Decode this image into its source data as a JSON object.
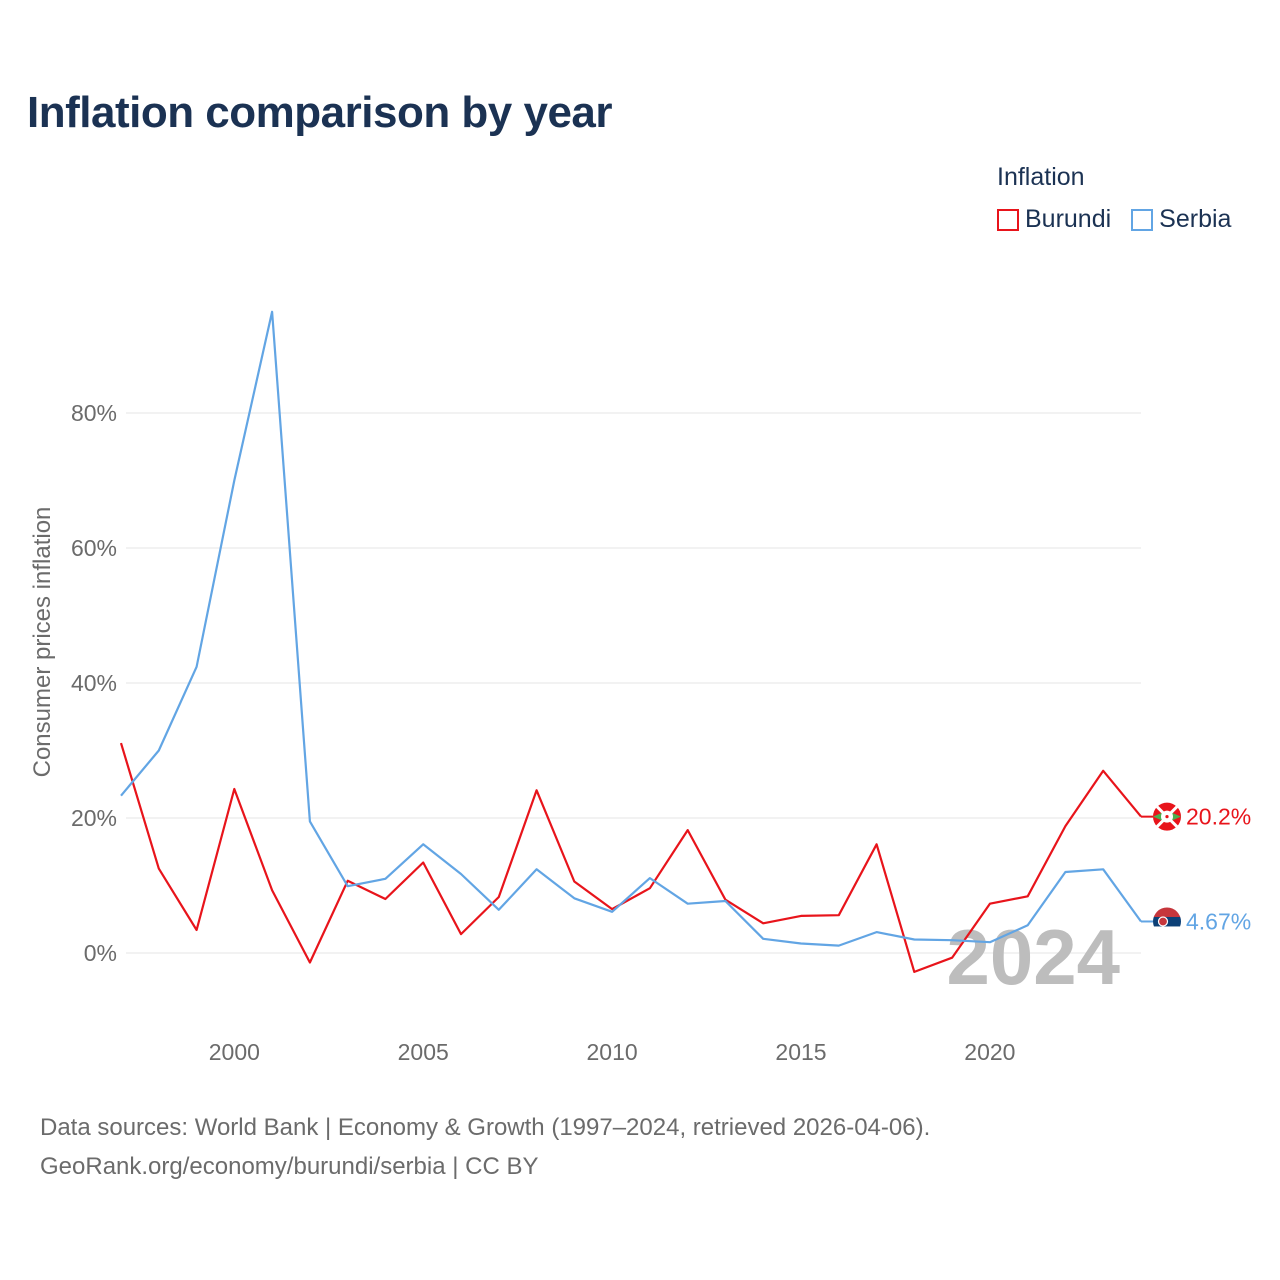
{
  "title": "Inflation comparison by year",
  "legend": {
    "title": "Inflation",
    "items": [
      {
        "label": "Burundi",
        "color": "#e8141b"
      },
      {
        "label": "Serbia",
        "color": "#62a5e4"
      }
    ]
  },
  "source": {
    "line1": "Data sources: World Bank | Economy & Growth (1997–2024, retrieved 2026-04-06).",
    "line2": "GeoRank.org/economy/burundi/serbia | CC BY"
  },
  "chart_data": {
    "type": "line",
    "title": "Inflation comparison by year",
    "xlabel": "",
    "ylabel": "Consumer prices inflation",
    "xlim": [
      1997,
      2024
    ],
    "ylim": [
      -8,
      97
    ],
    "x_ticks": [
      2000,
      2005,
      2010,
      2015,
      2020
    ],
    "y_ticks": [
      0,
      20,
      40,
      60,
      80
    ],
    "y_tick_labels": [
      "0%",
      "20%",
      "40%",
      "60%",
      "80%"
    ],
    "watermark": "2024",
    "x": [
      1997,
      1998,
      1999,
      2000,
      2001,
      2002,
      2003,
      2004,
      2005,
      2006,
      2007,
      2008,
      2009,
      2010,
      2011,
      2012,
      2013,
      2014,
      2015,
      2016,
      2017,
      2018,
      2019,
      2020,
      2021,
      2022,
      2023,
      2024
    ],
    "series": [
      {
        "name": "Burundi",
        "color": "#e8141b",
        "end_label": "20.2%",
        "values": [
          31.1,
          12.5,
          3.4,
          24.3,
          9.3,
          -1.4,
          10.7,
          8.0,
          13.4,
          2.8,
          8.3,
          24.1,
          10.6,
          6.5,
          9.6,
          18.2,
          7.9,
          4.4,
          5.5,
          5.6,
          16.1,
          -2.8,
          -0.7,
          7.3,
          8.4,
          18.8,
          27.0,
          20.2
        ]
      },
      {
        "name": "Serbia",
        "color": "#62a5e4",
        "end_label": "4.67%",
        "values": [
          23.3,
          30.0,
          42.4,
          70.0,
          95.0,
          19.5,
          9.9,
          11.0,
          16.1,
          11.7,
          6.4,
          12.4,
          8.1,
          6.1,
          11.1,
          7.3,
          7.7,
          2.1,
          1.4,
          1.1,
          3.1,
          2.0,
          1.9,
          1.6,
          4.1,
          12.0,
          12.4,
          4.67
        ]
      }
    ]
  }
}
